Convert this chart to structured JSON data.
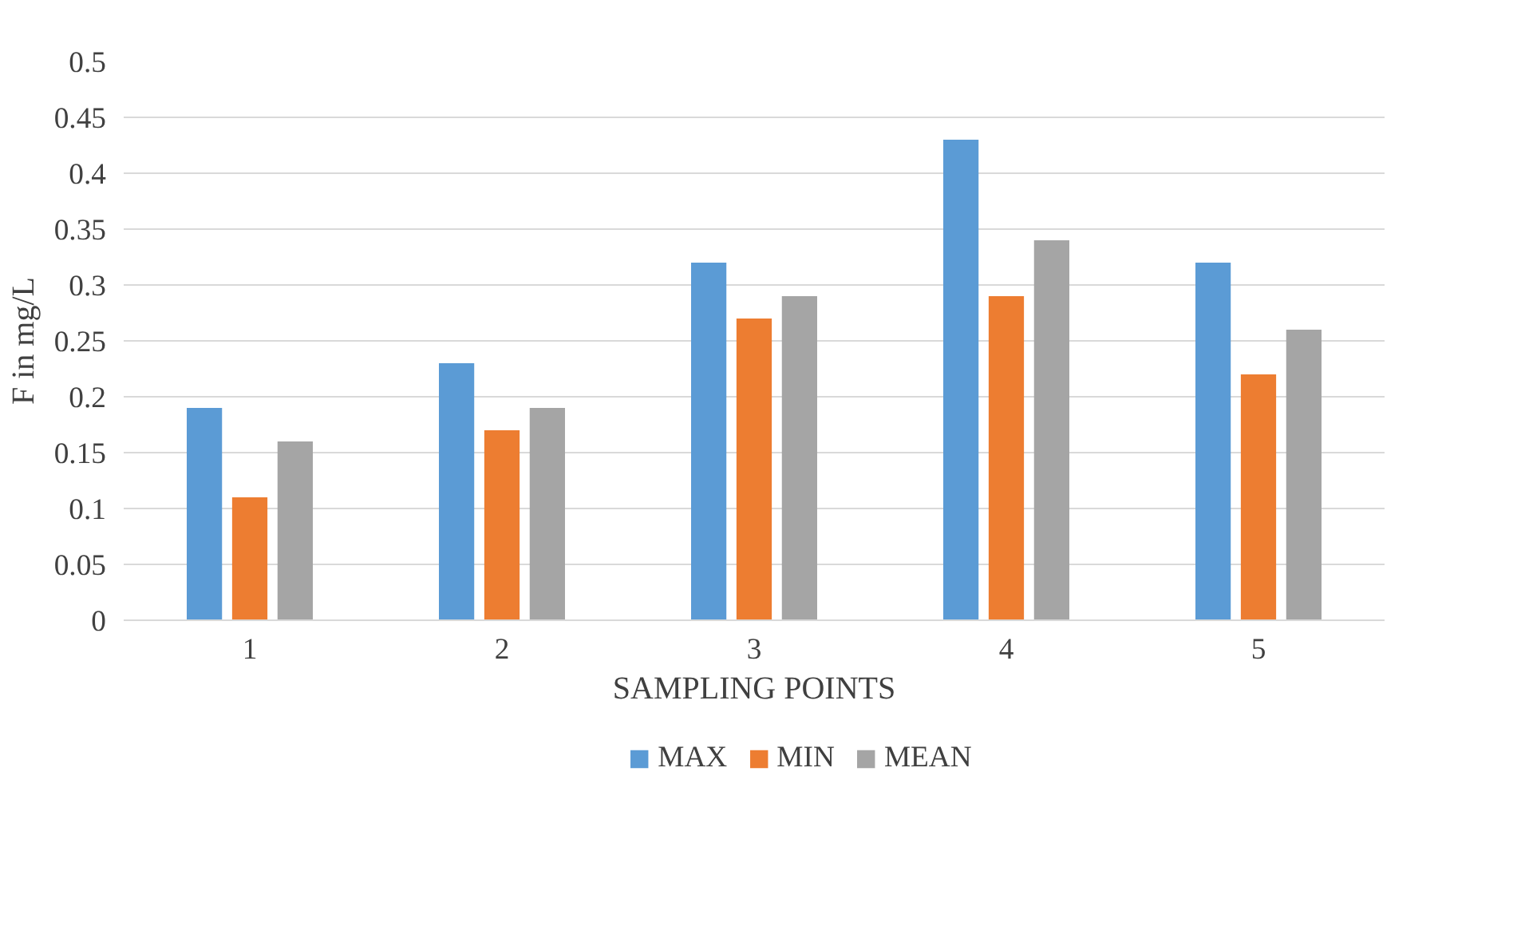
{
  "chart_data": {
    "type": "bar",
    "xlabel": "SAMPLING POINTS",
    "ylabel": "F in mg/L",
    "categories": [
      "1",
      "2",
      "3",
      "4",
      "5"
    ],
    "series": [
      {
        "name": "MAX",
        "color": "#5b9bd5",
        "values": [
          0.19,
          0.23,
          0.32,
          0.43,
          0.32
        ]
      },
      {
        "name": "MIN",
        "color": "#ed7d31",
        "values": [
          0.11,
          0.17,
          0.27,
          0.29,
          0.22
        ]
      },
      {
        "name": "MEAN",
        "color": "#a5a5a5",
        "values": [
          0.16,
          0.19,
          0.29,
          0.34,
          0.26
        ]
      }
    ],
    "ylim": [
      0,
      0.5
    ],
    "yticks": [
      0,
      0.05,
      0.1,
      0.15,
      0.2,
      0.25,
      0.3,
      0.35,
      0.4,
      0.45,
      0.5
    ],
    "grid": "y",
    "legend": "bottom"
  }
}
